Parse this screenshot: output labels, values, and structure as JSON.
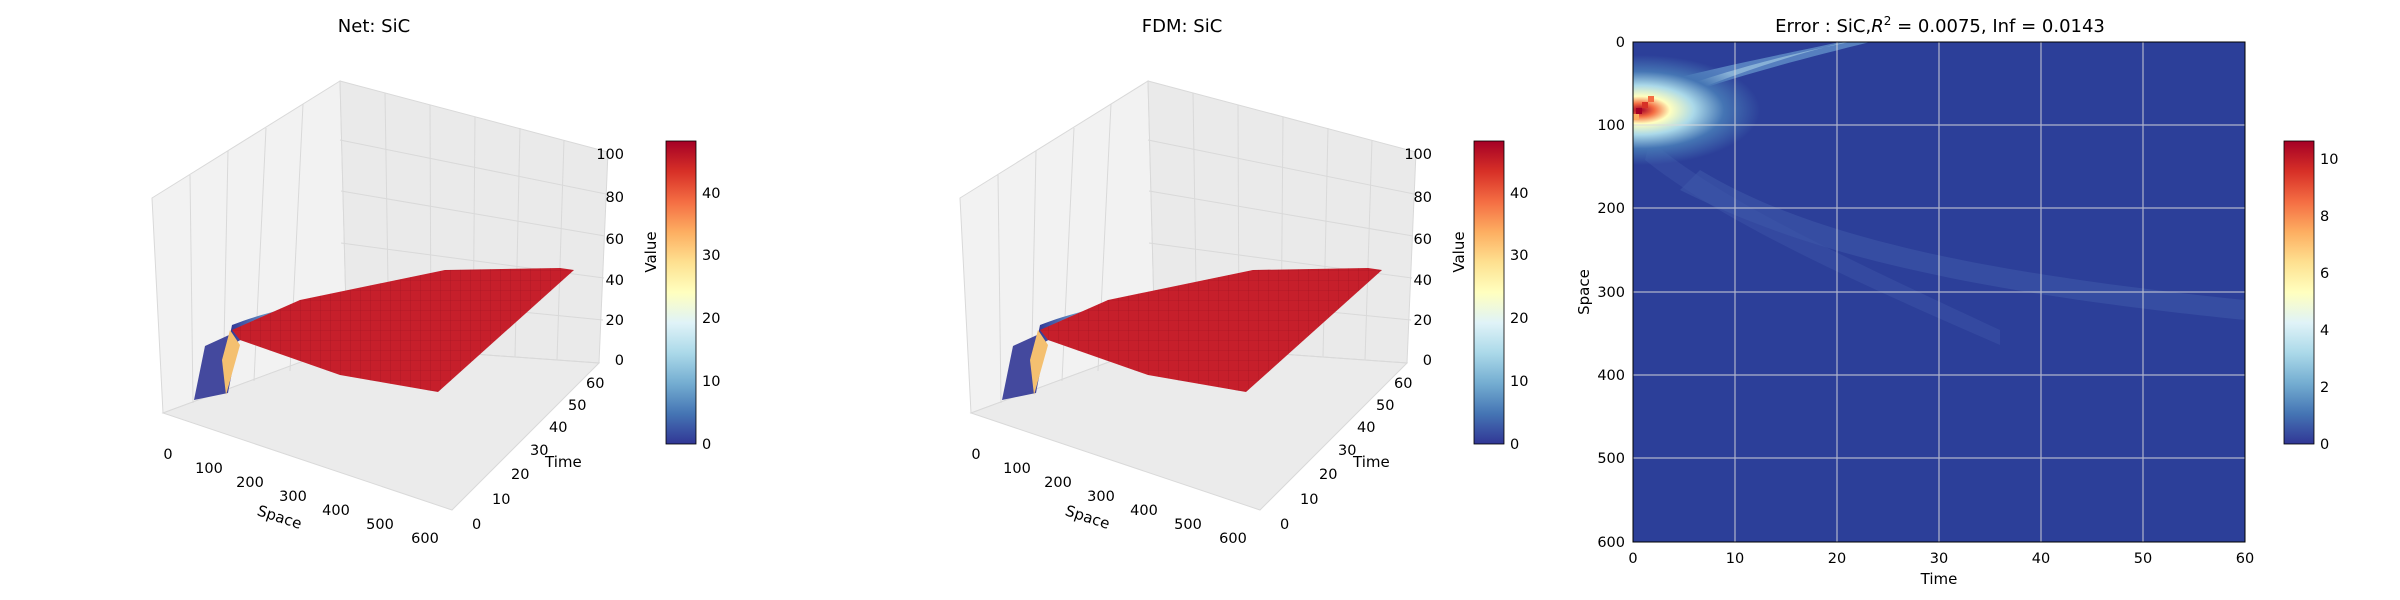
{
  "chart_data": [
    {
      "type": "surface",
      "title": "Net: SiC",
      "xlabel": "Space",
      "ylabel": "Time",
      "zlabel": "Value",
      "xlim": [
        0,
        600
      ],
      "ylim": [
        0,
        60
      ],
      "zlim": [
        0,
        100
      ],
      "x_ticks": [
        "0",
        "100",
        "200",
        "300",
        "400",
        "500",
        "600"
      ],
      "y_ticks": [
        "0",
        "10",
        "20",
        "30",
        "40",
        "50",
        "60"
      ],
      "z_ticks": [
        "0",
        "20",
        "40",
        "60",
        "80",
        "100"
      ],
      "colorbar": {
        "ticks": [
          "0",
          "10",
          "20",
          "30",
          "40"
        ],
        "range": [
          0,
          48
        ],
        "colormap": "RdYlBu_r"
      },
      "surface_summary": {
        "initial_peak_value": 48,
        "plateau_value": 48,
        "plateau_space_range": [
          200,
          600
        ]
      }
    },
    {
      "type": "surface",
      "title": "FDM: SiC",
      "xlabel": "Space",
      "ylabel": "Time",
      "zlabel": "Value",
      "xlim": [
        0,
        600
      ],
      "ylim": [
        0,
        60
      ],
      "zlim": [
        0,
        100
      ],
      "x_ticks": [
        "0",
        "100",
        "200",
        "300",
        "400",
        "500",
        "600"
      ],
      "y_ticks": [
        "0",
        "10",
        "20",
        "30",
        "40",
        "50",
        "60"
      ],
      "z_ticks": [
        "0",
        "20",
        "40",
        "60",
        "80",
        "100"
      ],
      "colorbar": {
        "ticks": [
          "0",
          "10",
          "20",
          "30",
          "40"
        ],
        "range": [
          0,
          48
        ],
        "colormap": "RdYlBu_r"
      },
      "surface_summary": {
        "initial_peak_value": 48,
        "plateau_value": 48,
        "plateau_space_range": [
          200,
          600
        ]
      }
    },
    {
      "type": "heatmap",
      "title_prefix": "Error : SiC,",
      "title_r2": "R",
      "title_r2_exp": "2",
      "title_suffix": " = 0.0075, Inf = 0.0143",
      "xlabel": "Time",
      "ylabel": "Space",
      "xlim": [
        0,
        60
      ],
      "ylim": [
        0,
        600
      ],
      "x_ticks": [
        "0",
        "10",
        "20",
        "30",
        "40",
        "50",
        "60"
      ],
      "y_ticks": [
        "0",
        "100",
        "200",
        "300",
        "400",
        "500",
        "600"
      ],
      "grid": true,
      "colorbar": {
        "ticks": [
          "0",
          "2",
          "4",
          "6",
          "8",
          "10"
        ],
        "range": [
          0,
          10.6
        ],
        "colormap": "RdYlBu_r"
      },
      "hotspot": {
        "time": 1,
        "space": 80,
        "value": 10.6
      }
    }
  ],
  "colors": {
    "axes_pane": "#f2f2f2",
    "grid": "#d9d9d9",
    "text": "#000000",
    "background": "#ffffff"
  }
}
